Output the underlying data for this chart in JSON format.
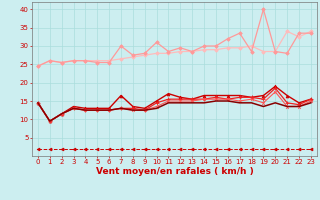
{
  "x": [
    0,
    1,
    2,
    3,
    4,
    5,
    6,
    7,
    8,
    9,
    10,
    11,
    12,
    13,
    14,
    15,
    16,
    17,
    18,
    19,
    20,
    21,
    22,
    23
  ],
  "series": [
    {
      "values": [
        24.5,
        26.0,
        25.5,
        26.0,
        26.0,
        26.0,
        26.0,
        26.5,
        27.0,
        27.5,
        28.0,
        28.0,
        28.5,
        28.5,
        29.0,
        29.0,
        29.5,
        29.5,
        30.0,
        28.5,
        28.5,
        34.0,
        32.5,
        34.0
      ],
      "color": "#ffbbbb",
      "marker": "D",
      "markersize": 1.8,
      "linewidth": 0.9
    },
    {
      "values": [
        24.5,
        26.0,
        25.5,
        26.0,
        26.0,
        25.5,
        25.5,
        30.0,
        27.5,
        28.0,
        31.0,
        28.5,
        29.5,
        28.5,
        30.0,
        30.0,
        32.0,
        33.5,
        28.5,
        40.0,
        28.5,
        28.0,
        33.5,
        33.5
      ],
      "color": "#ff9999",
      "marker": "D",
      "markersize": 1.8,
      "linewidth": 0.9
    },
    {
      "values": [
        14.5,
        9.5,
        11.5,
        13.5,
        13.0,
        13.0,
        13.0,
        16.5,
        13.5,
        13.0,
        15.0,
        17.0,
        16.0,
        15.5,
        16.5,
        16.5,
        16.5,
        16.5,
        16.0,
        16.5,
        19.0,
        16.5,
        14.5,
        15.5
      ],
      "color": "#cc0000",
      "marker": "^",
      "markersize": 2.0,
      "linewidth": 1.0
    },
    {
      "values": [
        14.5,
        9.5,
        11.5,
        13.0,
        12.5,
        12.5,
        12.5,
        13.0,
        13.0,
        12.5,
        14.5,
        15.5,
        15.5,
        15.5,
        15.5,
        16.0,
        15.5,
        16.0,
        16.0,
        15.5,
        18.5,
        14.5,
        14.0,
        15.5
      ],
      "color": "#ee2222",
      "marker": "+",
      "markersize": 2.5,
      "linewidth": 0.9
    },
    {
      "values": [
        14.5,
        9.5,
        11.5,
        13.0,
        12.5,
        12.5,
        12.5,
        13.0,
        12.5,
        12.5,
        13.5,
        15.0,
        15.0,
        15.0,
        15.5,
        15.5,
        15.5,
        15.0,
        15.5,
        14.5,
        17.5,
        13.5,
        13.5,
        15.0
      ],
      "color": "#ff5555",
      "marker": "x",
      "markersize": 2.0,
      "linewidth": 0.8
    },
    {
      "values": [
        14.5,
        9.5,
        11.5,
        13.0,
        12.5,
        12.5,
        12.5,
        13.0,
        12.5,
        12.5,
        13.0,
        14.5,
        14.5,
        14.5,
        14.5,
        15.0,
        15.0,
        14.5,
        14.5,
        13.5,
        14.5,
        13.5,
        13.5,
        14.5
      ],
      "color": "#880000",
      "marker": "None",
      "markersize": 0,
      "linewidth": 1.1
    },
    {
      "values": [
        2.0,
        2.0,
        2.0,
        2.0,
        2.0,
        2.0,
        2.0,
        2.0,
        2.0,
        2.0,
        2.0,
        2.0,
        2.0,
        2.0,
        2.0,
        2.0,
        2.0,
        2.0,
        2.0,
        2.0,
        2.0,
        2.0,
        2.0,
        2.0
      ],
      "color": "#cc0000",
      "marker": "<",
      "markersize": 2.0,
      "linewidth": 0.7,
      "linestyle": "dashed"
    }
  ],
  "xlabel": "Vent moyen/en rafales ( km/h )",
  "background_color": "#cceef0",
  "grid_color": "#aadddd",
  "ylim": [
    0,
    42
  ],
  "xlim": [
    -0.5,
    23.5
  ],
  "yticks": [
    5,
    10,
    15,
    20,
    25,
    30,
    35,
    40
  ],
  "xticks": [
    0,
    1,
    2,
    3,
    4,
    5,
    6,
    7,
    8,
    9,
    10,
    11,
    12,
    13,
    14,
    15,
    16,
    17,
    18,
    19,
    20,
    21,
    22,
    23
  ],
  "tick_color": "#cc0000",
  "label_color": "#cc0000",
  "xlabel_fontsize": 6.5,
  "tick_fontsize": 5.0
}
